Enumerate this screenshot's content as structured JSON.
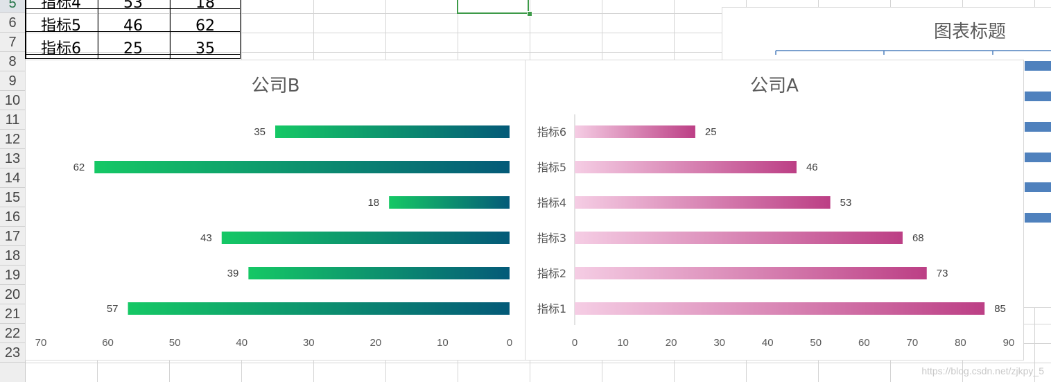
{
  "spreadsheet": {
    "row_numbers": [
      "5",
      "6",
      "7",
      "8",
      "9",
      "10",
      "11",
      "12",
      "13",
      "14",
      "15",
      "16",
      "17",
      "18",
      "19",
      "20",
      "21",
      "22",
      "23"
    ],
    "table_rows": [
      {
        "label": "指标4",
        "a": "53",
        "b": "18"
      },
      {
        "label": "指标5",
        "a": "46",
        "b": "62"
      },
      {
        "label": "指标6",
        "a": "25",
        "b": "35"
      }
    ]
  },
  "colors": {
    "company_b_gradient": [
      "#15c865",
      "#045a78"
    ],
    "company_a_gradient": [
      "#f5cde4",
      "#bc3f85"
    ],
    "selection": "#3d9a48",
    "bg_chart_bar": "#4f81bd"
  },
  "chart_data": [
    {
      "type": "bar",
      "orientation": "horizontal",
      "x_reversed": true,
      "title": "公司B",
      "categories": [
        "指标1",
        "指标2",
        "指标3",
        "指标4",
        "指标5",
        "指标6"
      ],
      "values": [
        57,
        39,
        43,
        18,
        62,
        35
      ],
      "xlim": [
        0,
        70
      ],
      "xticks": [
        "70",
        "60",
        "50",
        "40",
        "30",
        "20",
        "10",
        "0"
      ],
      "show_category_labels": false,
      "data_labels": true
    },
    {
      "type": "bar",
      "orientation": "horizontal",
      "title": "公司A",
      "categories": [
        "指标1",
        "指标2",
        "指标3",
        "指标4",
        "指标5",
        "指标6"
      ],
      "values": [
        85,
        73,
        68,
        53,
        46,
        25
      ],
      "xlim": [
        0,
        90
      ],
      "xticks": [
        "0",
        "10",
        "20",
        "30",
        "40",
        "50",
        "60",
        "70",
        "80",
        "90"
      ],
      "show_category_labels": true,
      "data_labels": true
    },
    {
      "type": "bar",
      "title": "图表标题",
      "partially_visible": true
    }
  ],
  "watermark": "https://blog.csdn.net/zjkpy_5"
}
